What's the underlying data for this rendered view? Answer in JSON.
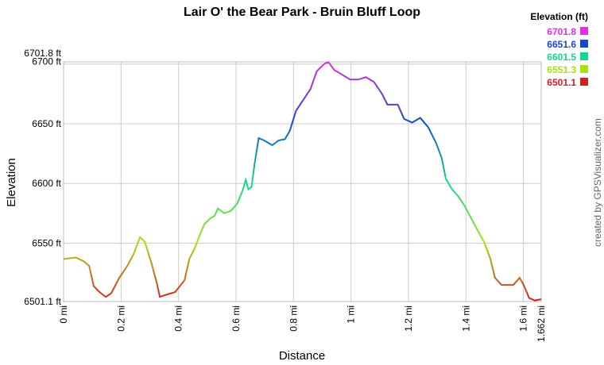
{
  "chart_data": {
    "type": "line",
    "title": "Lair O' the Bear Park - Bruin Bluff Loop",
    "x_label": "Distance",
    "y_label": "Elevation",
    "credit": "created by GPSVisualizer.com",
    "legend": {
      "title": "Elevation (ft)",
      "entries": [
        {
          "value": 6701.8,
          "color": "#e030e0"
        },
        {
          "value": 6651.6,
          "color": "#1848d0"
        },
        {
          "value": 6601.5,
          "color": "#10d890"
        },
        {
          "value": 6551.3,
          "color": "#a8e010"
        },
        {
          "value": 6501.1,
          "color": "#d02020"
        }
      ]
    },
    "grid": true,
    "xlim": [
      0,
      1.662
    ],
    "xticks": [
      {
        "value": 0,
        "label": "0 mi"
      },
      {
        "value": 0.2,
        "label": "0.2 mi"
      },
      {
        "value": 0.4,
        "label": "0.4 mi"
      },
      {
        "value": 0.6,
        "label": "0.6 mi"
      },
      {
        "value": 0.8,
        "label": "0.8 mi"
      },
      {
        "value": 1,
        "label": "1 mi"
      },
      {
        "value": 1.2,
        "label": "1.2 mi"
      },
      {
        "value": 1.4,
        "label": "1.4 mi"
      },
      {
        "value": 1.6,
        "label": "1.6 mi"
      },
      {
        "value": 1.662,
        "label": "1.662 mi"
      }
    ],
    "ylim": [
      6501.1,
      6701.8
    ],
    "yticks": [
      {
        "value": 6501.1,
        "label": "6501.1 ft"
      },
      {
        "value": 6550,
        "label": "6550 ft"
      },
      {
        "value": 6600,
        "label": "6600 ft"
      },
      {
        "value": 6650,
        "label": "6650 ft"
      },
      {
        "value": 6700,
        "label": "6700 ft"
      },
      {
        "value": 6701.8,
        "label": "6701.8 ft"
      }
    ],
    "x": [
      0,
      0.042,
      0.069,
      0.089,
      0.105,
      0.125,
      0.147,
      0.166,
      0.194,
      0.222,
      0.244,
      0.266,
      0.283,
      0.305,
      0.324,
      0.335,
      0.36,
      0.388,
      0.421,
      0.438,
      0.457,
      0.471,
      0.49,
      0.512,
      0.526,
      0.537,
      0.559,
      0.582,
      0.604,
      0.623,
      0.634,
      0.643,
      0.654,
      0.665,
      0.679,
      0.698,
      0.726,
      0.748,
      0.77,
      0.787,
      0.809,
      0.837,
      0.859,
      0.881,
      0.909,
      0.922,
      0.942,
      0.97,
      0.997,
      1.025,
      1.052,
      1.08,
      1.108,
      1.127,
      1.163,
      1.185,
      1.213,
      1.241,
      1.269,
      1.296,
      1.316,
      1.33,
      1.352,
      1.374,
      1.396,
      1.418,
      1.44,
      1.463,
      1.485,
      1.501,
      1.524,
      1.565,
      1.587,
      1.601,
      1.62,
      1.64,
      1.662
    ],
    "series": [
      {
        "name": "Elevation",
        "values": [
          6536.7,
          6538,
          6535,
          6531,
          6514,
          6509,
          6505,
          6508,
          6521,
          6531,
          6541,
          6555,
          6551,
          6534,
          6517,
          6505,
          6507,
          6509,
          6519,
          6537,
          6546,
          6555,
          6566,
          6571,
          6573,
          6579,
          6575,
          6577,
          6583,
          6594,
          6603,
          6595,
          6597,
          6617,
          6638,
          6636,
          6632,
          6636,
          6637,
          6644,
          6661,
          6671,
          6679,
          6694,
          6700.5,
          6701.5,
          6695,
          6691,
          6687,
          6687,
          6689,
          6685,
          6675,
          6666,
          6666,
          6654,
          6651,
          6655,
          6647,
          6634,
          6621,
          6604,
          6595,
          6589,
          6581,
          6571,
          6561,
          6551,
          6537,
          6521,
          6515,
          6515,
          6521,
          6515,
          6504,
          6502,
          6503
        ]
      }
    ]
  }
}
